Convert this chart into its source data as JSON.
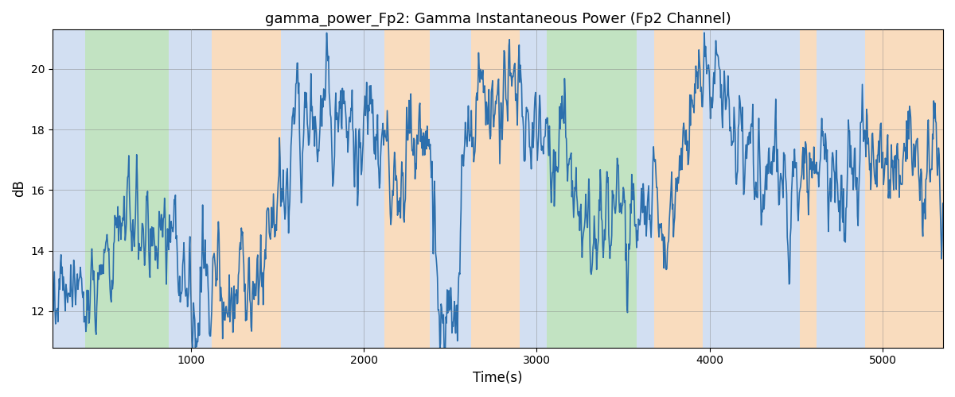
{
  "title": "gamma_power_Fp2: Gamma Instantaneous Power (Fp2 Channel)",
  "xlabel": "Time(s)",
  "ylabel": "dB",
  "xlim": [
    200,
    5350
  ],
  "ylim": [
    10.8,
    21.3
  ],
  "yticks": [
    12,
    14,
    16,
    18,
    20
  ],
  "xticks": [
    1000,
    2000,
    3000,
    4000,
    5000
  ],
  "line_color": "#2c6fad",
  "line_width": 1.2,
  "bg_bands": [
    {
      "xmin": 200,
      "xmax": 390,
      "color": "#aec6e8",
      "alpha": 0.55
    },
    {
      "xmin": 390,
      "xmax": 870,
      "color": "#90cc90",
      "alpha": 0.55
    },
    {
      "xmin": 870,
      "xmax": 1120,
      "color": "#aec6e8",
      "alpha": 0.55
    },
    {
      "xmin": 1120,
      "xmax": 1520,
      "color": "#f5c08a",
      "alpha": 0.55
    },
    {
      "xmin": 1520,
      "xmax": 1940,
      "color": "#aec6e8",
      "alpha": 0.55
    },
    {
      "xmin": 1940,
      "xmax": 2120,
      "color": "#aec6e8",
      "alpha": 0.55
    },
    {
      "xmin": 2120,
      "xmax": 2380,
      "color": "#f5c08a",
      "alpha": 0.55
    },
    {
      "xmin": 2380,
      "xmax": 2620,
      "color": "#aec6e8",
      "alpha": 0.55
    },
    {
      "xmin": 2620,
      "xmax": 2900,
      "color": "#f5c08a",
      "alpha": 0.55
    },
    {
      "xmin": 2900,
      "xmax": 2980,
      "color": "#aec6e8",
      "alpha": 0.55
    },
    {
      "xmin": 2980,
      "xmax": 3060,
      "color": "#aec6e8",
      "alpha": 0.55
    },
    {
      "xmin": 3060,
      "xmax": 3580,
      "color": "#90cc90",
      "alpha": 0.55
    },
    {
      "xmin": 3580,
      "xmax": 3680,
      "color": "#aec6e8",
      "alpha": 0.55
    },
    {
      "xmin": 3680,
      "xmax": 3960,
      "color": "#f5c08a",
      "alpha": 0.55
    },
    {
      "xmin": 3960,
      "xmax": 4520,
      "color": "#aec6e8",
      "alpha": 0.55
    },
    {
      "xmin": 4520,
      "xmax": 4620,
      "color": "#f5c08a",
      "alpha": 0.55
    },
    {
      "xmin": 4620,
      "xmax": 4900,
      "color": "#aec6e8",
      "alpha": 0.55
    },
    {
      "xmin": 4900,
      "xmax": 5350,
      "color": "#f5c08a",
      "alpha": 0.55
    }
  ],
  "figsize": [
    12,
    5
  ],
  "dpi": 100
}
